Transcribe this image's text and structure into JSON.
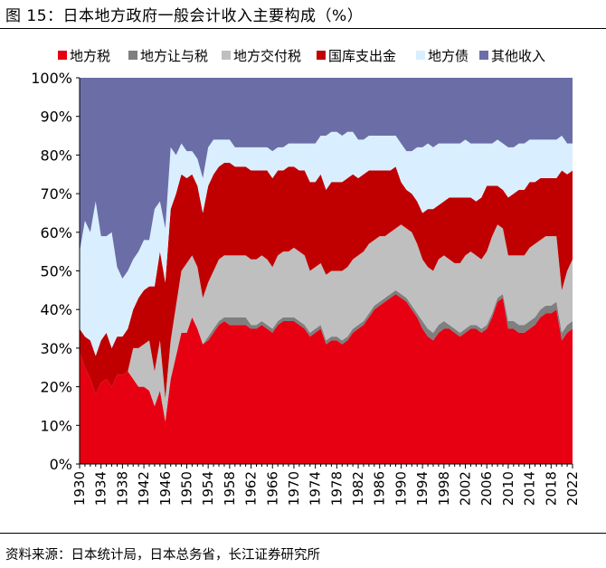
{
  "header": {
    "title": "图 15：日本地方政府一般会计收入主要构成（%）"
  },
  "footer": {
    "source": "资料来源：日本统计局，日本总务省，长江证券研究所"
  },
  "colors": {
    "local_tax": "#e60012",
    "local_transfer_tax": "#7f7f7f",
    "local_grant_tax": "#bfbfbf",
    "treasury": "#c00000",
    "local_bonds": "#d9efff",
    "other": "#6b6ea6"
  },
  "chart_data": {
    "type": "area",
    "stacked": true,
    "normalized": true,
    "title": "",
    "xlabel": "",
    "ylabel": "",
    "ylim": [
      0,
      100
    ],
    "y_ticks": [
      "0%",
      "10%",
      "20%",
      "30%",
      "40%",
      "50%",
      "60%",
      "70%",
      "80%",
      "90%",
      "100%"
    ],
    "x_ticks": [
      "1930",
      "1934",
      "1938",
      "1942",
      "1946",
      "1950",
      "1954",
      "1958",
      "1962",
      "1966",
      "1970",
      "1974",
      "1978",
      "1982",
      "1986",
      "1990",
      "1994",
      "1998",
      "2002",
      "2006",
      "2010",
      "2014",
      "2018",
      "2022"
    ],
    "grid": false,
    "legend_position": "top",
    "x": [
      1930,
      1931,
      1932,
      1933,
      1934,
      1935,
      1936,
      1937,
      1938,
      1939,
      1940,
      1941,
      1942,
      1943,
      1944,
      1945,
      1946,
      1947,
      1948,
      1949,
      1950,
      1951,
      1952,
      1953,
      1954,
      1955,
      1956,
      1957,
      1958,
      1959,
      1960,
      1961,
      1962,
      1963,
      1964,
      1965,
      1966,
      1967,
      1968,
      1969,
      1970,
      1971,
      1972,
      1973,
      1974,
      1975,
      1976,
      1977,
      1978,
      1979,
      1980,
      1981,
      1982,
      1983,
      1984,
      1985,
      1986,
      1987,
      1988,
      1989,
      1990,
      1991,
      1992,
      1993,
      1994,
      1995,
      1996,
      1997,
      1998,
      1999,
      2000,
      2001,
      2002,
      2003,
      2004,
      2005,
      2006,
      2007,
      2008,
      2009,
      2010,
      2011,
      2012,
      2013,
      2014,
      2015,
      2016,
      2017,
      2018,
      2019,
      2020,
      2021,
      2022
    ],
    "series": [
      {
        "name": "地方税",
        "values": [
          29,
          25,
          22,
          18,
          21,
          22,
          20,
          23,
          23,
          24,
          22,
          20,
          20,
          19,
          15,
          19,
          11,
          22,
          28,
          34,
          34,
          38,
          35,
          31,
          32,
          34,
          36,
          37,
          36,
          36,
          36,
          36,
          35,
          35,
          36,
          35,
          34,
          36,
          37,
          37,
          37,
          36,
          35,
          33,
          34,
          35,
          31,
          32,
          32,
          31,
          32,
          34,
          35,
          36,
          38,
          40,
          41,
          42,
          43,
          44,
          43,
          42,
          40,
          38,
          35,
          33,
          32,
          34,
          35,
          35,
          34,
          33,
          34,
          35,
          35,
          34,
          35,
          38,
          42,
          43,
          35,
          35,
          34,
          34,
          35,
          36,
          38,
          39,
          39,
          40,
          32,
          34,
          35
        ]
      },
      {
        "name": "地方让与税",
        "values": [
          0,
          0,
          0,
          0,
          0,
          0,
          0,
          0,
          0,
          0,
          0,
          0,
          0,
          0,
          0,
          0,
          0,
          0,
          0,
          0,
          0,
          0,
          0,
          0,
          1,
          1,
          1,
          1,
          2,
          2,
          2,
          2,
          1,
          1,
          1,
          1,
          1,
          1,
          1,
          1,
          1,
          1,
          1,
          1,
          1,
          1,
          1,
          1,
          1,
          1,
          1,
          1,
          1,
          1,
          1,
          1,
          1,
          1,
          1,
          1,
          1,
          1,
          1,
          1,
          2,
          2,
          2,
          2,
          2,
          1,
          1,
          1,
          1,
          1,
          1,
          1,
          1,
          1,
          1,
          1,
          2,
          2,
          2,
          2,
          2,
          2,
          2,
          2,
          2,
          2,
          2,
          2,
          2
        ]
      },
      {
        "name": "地方交付税",
        "values": [
          0,
          0,
          0,
          0,
          0,
          0,
          0,
          0,
          0,
          0,
          8,
          10,
          11,
          13,
          9,
          13,
          6,
          10,
          13,
          16,
          18,
          16,
          16,
          12,
          14,
          15,
          16,
          16,
          16,
          16,
          16,
          16,
          17,
          17,
          17,
          17,
          16,
          17,
          17,
          17,
          18,
          18,
          18,
          16,
          16,
          16,
          17,
          17,
          17,
          18,
          18,
          18,
          18,
          18,
          18,
          17,
          17,
          16,
          16,
          16,
          18,
          18,
          19,
          18,
          16,
          16,
          16,
          17,
          17,
          17,
          17,
          18,
          19,
          19,
          18,
          18,
          19,
          20,
          19,
          17,
          17,
          17,
          18,
          18,
          19,
          19,
          18,
          18,
          18,
          17,
          11,
          14,
          16
        ]
      },
      {
        "name": "国库支出金",
        "values": [
          6,
          8,
          10,
          10,
          11,
          12,
          10,
          10,
          10,
          11,
          10,
          13,
          14,
          14,
          22,
          23,
          30,
          34,
          29,
          25,
          22,
          21,
          21,
          22,
          25,
          25,
          24,
          24,
          24,
          23,
          23,
          23,
          23,
          23,
          22,
          23,
          23,
          22,
          21,
          22,
          21,
          21,
          22,
          23,
          22,
          23,
          22,
          23,
          23,
          23,
          23,
          22,
          20,
          20,
          19,
          18,
          17,
          17,
          16,
          16,
          11,
          10,
          10,
          11,
          12,
          15,
          16,
          14,
          14,
          16,
          17,
          17,
          15,
          14,
          14,
          16,
          17,
          13,
          10,
          10,
          15,
          16,
          17,
          17,
          17,
          16,
          16,
          15,
          15,
          15,
          31,
          25,
          23
        ]
      },
      {
        "name": "地方债",
        "values": [
          20,
          30,
          28,
          40,
          27,
          25,
          30,
          18,
          15,
          15,
          13,
          12,
          13,
          12,
          20,
          13,
          14,
          16,
          10,
          8,
          7,
          6,
          7,
          9,
          10,
          9,
          7,
          6,
          6,
          5,
          5,
          5,
          6,
          6,
          6,
          6,
          7,
          6,
          6,
          6,
          6,
          7,
          7,
          10,
          10,
          10,
          14,
          13,
          13,
          12,
          12,
          11,
          10,
          9,
          9,
          9,
          9,
          9,
          9,
          8,
          10,
          10,
          11,
          14,
          17,
          17,
          16,
          16,
          15,
          14,
          14,
          14,
          15,
          14,
          15,
          14,
          11,
          11,
          12,
          12,
          13,
          12,
          12,
          12,
          11,
          11,
          10,
          10,
          10,
          10,
          9,
          8,
          7
        ]
      },
      {
        "name": "其他收入",
        "values": [
          45,
          37,
          40,
          32,
          41,
          41,
          40,
          49,
          52,
          50,
          47,
          45,
          42,
          42,
          34,
          32,
          39,
          18,
          20,
          17,
          19,
          19,
          21,
          26,
          18,
          16,
          16,
          16,
          16,
          18,
          18,
          18,
          18,
          18,
          18,
          18,
          19,
          18,
          18,
          17,
          17,
          17,
          17,
          17,
          17,
          15,
          15,
          14,
          14,
          15,
          14,
          14,
          16,
          16,
          15,
          15,
          15,
          15,
          15,
          15,
          17,
          19,
          19,
          18,
          18,
          17,
          18,
          17,
          17,
          17,
          17,
          17,
          16,
          17,
          17,
          17,
          17,
          17,
          16,
          17,
          18,
          18,
          17,
          17,
          16,
          16,
          16,
          16,
          16,
          16,
          15,
          17,
          17
        ]
      }
    ]
  }
}
